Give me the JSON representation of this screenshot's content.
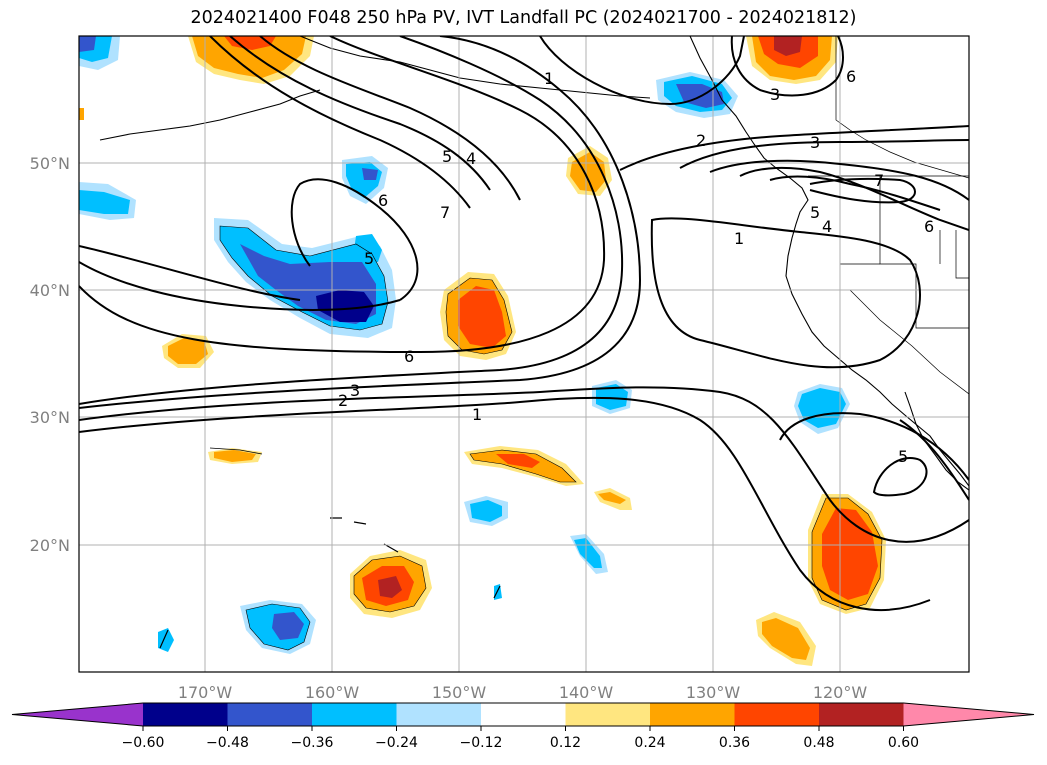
{
  "title": "2024021400 F048 250 hPa PV, IVT Landfall PC (2024021700 - 2024021812)",
  "lat_labels": [
    "50°N",
    "40°N",
    "30°N",
    "20°N"
  ],
  "lon_labels": [
    "170°W",
    "160°W",
    "150°W",
    "140°W",
    "130°W",
    "120°W"
  ],
  "contour_labels": [
    "1",
    "2",
    "3",
    "5",
    "4",
    "6",
    "7",
    "5",
    "6",
    "6",
    "2",
    "3",
    "1",
    "3",
    "7",
    "5",
    "4",
    "6",
    "1",
    "5"
  ],
  "colorbar": {
    "ticks": [
      "−0.60",
      "−0.48",
      "−0.36",
      "−0.24",
      "−0.12",
      "0.12",
      "0.24",
      "0.36",
      "0.48",
      "0.60"
    ],
    "colors": [
      "#9933cc",
      "#00008b",
      "#3355cc",
      "#00bfff",
      "#b0e2ff",
      "#ffffff",
      "#ffe680",
      "#ffa500",
      "#ff4500",
      "#b22222",
      "#ff88aa"
    ]
  }
}
